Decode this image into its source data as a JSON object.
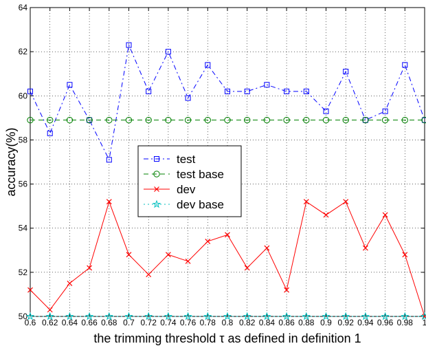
{
  "chart_data": {
    "type": "line",
    "xlabel": "the trimming threshold τ as defined in definition 1",
    "ylabel": "accuracy(%)",
    "xlim": [
      0.6,
      1.0
    ],
    "ylim": [
      50,
      64
    ],
    "x_ticks": [
      "0.6",
      "0.62",
      "0.64",
      "0.66",
      "0.68",
      "0.7",
      "0.72",
      "0.74",
      "0.76",
      "0.78",
      "0.8",
      "0.82",
      "0.84",
      "0.86",
      "0.88",
      "0.9",
      "0.92",
      "0.94",
      "0.96",
      "0.98",
      "1"
    ],
    "y_ticks": [
      "50",
      "52",
      "54",
      "56",
      "58",
      "60",
      "62",
      "64"
    ],
    "x": [
      0.6,
      0.62,
      0.64,
      0.66,
      0.68,
      0.7,
      0.72,
      0.74,
      0.76,
      0.78,
      0.8,
      0.82,
      0.84,
      0.86,
      0.88,
      0.9,
      0.92,
      0.94,
      0.96,
      0.98,
      1.0
    ],
    "grid": true,
    "legend_position": "center-left",
    "series": [
      {
        "name": "test",
        "color": "#0000ff",
        "marker": "square",
        "linestyle": "dashdot",
        "values": [
          60.2,
          58.3,
          60.5,
          58.9,
          57.1,
          62.3,
          60.2,
          62.0,
          59.9,
          61.4,
          60.2,
          60.2,
          60.5,
          60.2,
          60.2,
          59.3,
          61.1,
          58.9,
          59.3,
          61.4,
          58.9
        ]
      },
      {
        "name": "test base",
        "color": "#008000",
        "marker": "circle",
        "linestyle": "dashed",
        "values": [
          58.9,
          58.9,
          58.9,
          58.9,
          58.9,
          58.9,
          58.9,
          58.9,
          58.9,
          58.9,
          58.9,
          58.9,
          58.9,
          58.9,
          58.9,
          58.9,
          58.9,
          58.9,
          58.9,
          58.9,
          58.9
        ]
      },
      {
        "name": "dev",
        "color": "#ff0000",
        "marker": "x",
        "linestyle": "solid",
        "values": [
          51.2,
          50.3,
          51.5,
          52.2,
          55.2,
          52.8,
          51.9,
          52.8,
          52.5,
          53.4,
          53.7,
          52.2,
          53.1,
          51.2,
          55.2,
          54.6,
          55.2,
          53.1,
          54.6,
          52.8,
          50.0
        ]
      },
      {
        "name": "dev base",
        "color": "#00bfbf",
        "marker": "star",
        "linestyle": "dotted",
        "values": [
          50.0,
          50.0,
          50.0,
          50.0,
          50.0,
          50.0,
          50.0,
          50.0,
          50.0,
          50.0,
          50.0,
          50.0,
          50.0,
          50.0,
          50.0,
          50.0,
          50.0,
          50.0,
          50.0,
          50.0,
          50.0
        ]
      }
    ]
  }
}
